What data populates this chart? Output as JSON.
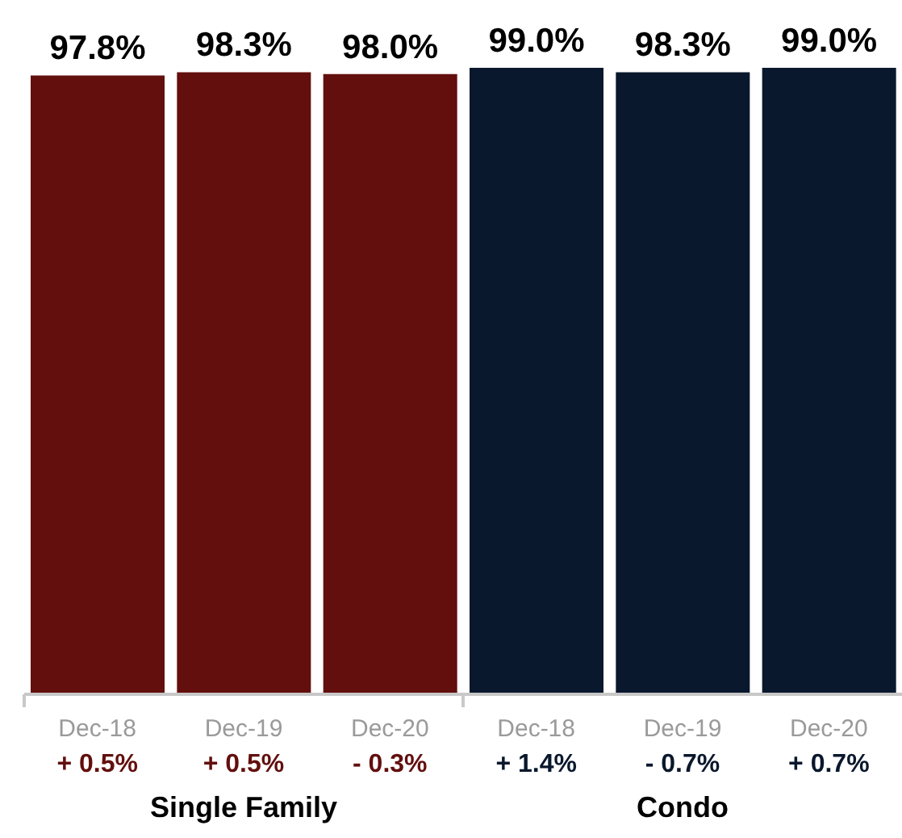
{
  "chart_data": {
    "type": "bar",
    "categories": [
      "Dec-18",
      "Dec-19",
      "Dec-20",
      "Dec-18",
      "Dec-19",
      "Dec-20"
    ],
    "values": [
      97.8,
      98.3,
      98.0,
      99.0,
      98.3,
      99.0
    ],
    "colors": [
      "#620f0e",
      "#620f0e",
      "#620f0e",
      "#0a182d",
      "#0a182d",
      "#0a182d"
    ],
    "value_labels": [
      "97.8%",
      "98.3%",
      "98.0%",
      "99.0%",
      "98.3%",
      "99.0%"
    ],
    "annotations": [
      "+ 0.5%",
      "+ 0.5%",
      "- 0.3%",
      "+ 1.4%",
      "- 0.7%",
      "+ 0.7%",
      "Single Family",
      "Condo"
    ]
  }
}
